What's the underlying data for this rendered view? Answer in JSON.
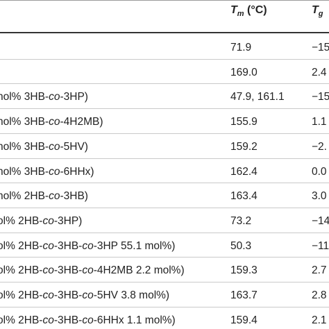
{
  "header": {
    "tm_T": "T",
    "tm_sub": "m",
    "tm_unit": " (°C)",
    "tg_T": "T",
    "tg_sub": "g"
  },
  "rows": [
    {
      "sample": [],
      "tm": "71.9",
      "tg": "−15"
    },
    {
      "sample": [],
      "tm": "169.0",
      "tg": "2.4"
    },
    {
      "sample": [
        {
          "t": "nol% 3HB-"
        },
        {
          "t": "co",
          "i": true
        },
        {
          "t": "-3HP)"
        }
      ],
      "tm": "47.9, 161.1",
      "tg": "−15"
    },
    {
      "sample": [
        {
          "t": "nol% 3HB-"
        },
        {
          "t": "co",
          "i": true
        },
        {
          "t": "-4H2MB)"
        }
      ],
      "tm": "155.9",
      "tg": "1.1"
    },
    {
      "sample": [
        {
          "t": "nol% 3HB-"
        },
        {
          "t": "co",
          "i": true
        },
        {
          "t": "-5HV)"
        }
      ],
      "tm": "159.2",
      "tg": "−2."
    },
    {
      "sample": [
        {
          "t": "nol% 3HB-"
        },
        {
          "t": "co",
          "i": true
        },
        {
          "t": "-6HHx)"
        }
      ],
      "tm": "162.4",
      "tg": "0.0"
    },
    {
      "sample": [
        {
          "t": "nol% 2HB-"
        },
        {
          "t": "co",
          "i": true
        },
        {
          "t": "-3HB)"
        }
      ],
      "tm": "163.4",
      "tg": "3.0"
    },
    {
      "sample": [
        {
          "t": "ol% 2HB-"
        },
        {
          "t": "co",
          "i": true
        },
        {
          "t": "-3HP)"
        }
      ],
      "tm": "73.2",
      "tg": "−14"
    },
    {
      "sample": [
        {
          "t": "ol% 2HB-"
        },
        {
          "t": "co",
          "i": true
        },
        {
          "t": "-3HB-"
        },
        {
          "t": "co",
          "i": true
        },
        {
          "t": "-3HP 55.1 mol%)"
        }
      ],
      "tm": "50.3",
      "tg": "−11"
    },
    {
      "sample": [
        {
          "t": "ol% 2HB-"
        },
        {
          "t": "co",
          "i": true
        },
        {
          "t": "-3HB-"
        },
        {
          "t": "co",
          "i": true
        },
        {
          "t": "-4H2MB 2.2 mol%)"
        }
      ],
      "tm": "159.3",
      "tg": "2.7"
    },
    {
      "sample": [
        {
          "t": "ol% 2HB-"
        },
        {
          "t": "co",
          "i": true
        },
        {
          "t": "-3HB-"
        },
        {
          "t": "co",
          "i": true
        },
        {
          "t": "-5HV 3.8 mol%)"
        }
      ],
      "tm": "163.7",
      "tg": "2.8"
    },
    {
      "sample": [
        {
          "t": "ol% 2HB-"
        },
        {
          "t": "co",
          "i": true
        },
        {
          "t": "-3HB-"
        },
        {
          "t": "co",
          "i": true
        },
        {
          "t": "-6HHx 1.1 mol%)"
        }
      ],
      "tm": "159.4",
      "tg": "2.1"
    }
  ]
}
